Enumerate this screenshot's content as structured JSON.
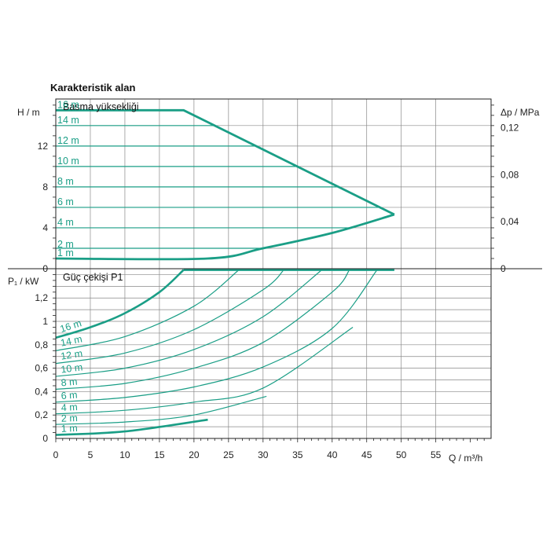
{
  "title": "Karakteristik alan",
  "colors": {
    "curve": "#1a9e86",
    "grid": "#888888",
    "axis": "#222222"
  },
  "chart_data": [
    {
      "type": "line",
      "id": "head",
      "title": "Basma yüksekliği",
      "ylabel": "H / m",
      "y2label": "Δp / MPa",
      "xlim": [
        0,
        63
      ],
      "ylim": [
        0,
        16.6
      ],
      "yticks": [
        "0",
        "4",
        "8",
        "12"
      ],
      "y2ticks": [
        "0",
        "0,04",
        "0,08",
        "0,12"
      ],
      "grid": true,
      "envelope": {
        "max": {
          "x": [
            0,
            18.5,
            49
          ],
          "y": [
            15.5,
            15.5,
            5.3
          ]
        },
        "min": {
          "x": [
            0,
            22,
            30,
            40,
            49
          ],
          "y": [
            1,
            1,
            2,
            3.5,
            5.3
          ]
        }
      },
      "series": [
        {
          "name": "16 m",
          "level": 15.5
        },
        {
          "name": "14 m",
          "level": 14
        },
        {
          "name": "12 m",
          "level": 12
        },
        {
          "name": "10 m",
          "level": 10
        },
        {
          "name": "8 m",
          "level": 8
        },
        {
          "name": "6 m",
          "level": 6
        },
        {
          "name": "4 m",
          "level": 4
        },
        {
          "name": "2 m",
          "level": 2
        },
        {
          "name": "1 m",
          "level": 1
        }
      ]
    },
    {
      "type": "line",
      "id": "power",
      "title": "Güç çekişi P1",
      "ylabel": "P₁ / kW",
      "xlabel": "Q / m³/h",
      "xlim": [
        0,
        63
      ],
      "ylim": [
        0,
        1.45
      ],
      "yticks": [
        "0",
        "0,2",
        "0,4",
        "0,6",
        "0,8",
        "1",
        "1,2"
      ],
      "xticks": [
        "0",
        "5",
        "10",
        "15",
        "20",
        "25",
        "30",
        "35",
        "40",
        "45",
        "50",
        "55"
      ],
      "grid": true,
      "max_power": {
        "x": [
          18.5,
          49
        ],
        "y": [
          1.44,
          1.44
        ]
      },
      "series": [
        {
          "name": "16 m",
          "x": [
            0,
            5,
            10,
            15,
            18.5
          ],
          "y": [
            0.86,
            0.95,
            1.07,
            1.25,
            1.44
          ]
        },
        {
          "name": "14 m",
          "x": [
            0,
            10,
            20,
            26.5
          ],
          "y": [
            0.75,
            0.87,
            1.13,
            1.44
          ]
        },
        {
          "name": "12 m",
          "x": [
            0,
            10,
            20,
            30,
            33
          ],
          "y": [
            0.64,
            0.73,
            0.93,
            1.27,
            1.44
          ]
        },
        {
          "name": "10 m",
          "x": [
            0,
            10,
            20,
            30,
            38.5
          ],
          "y": [
            0.53,
            0.6,
            0.76,
            1.04,
            1.44
          ]
        },
        {
          "name": "8 m",
          "x": [
            0,
            10,
            20,
            30,
            40,
            42.5
          ],
          "y": [
            0.42,
            0.47,
            0.6,
            0.82,
            1.25,
            1.44
          ]
        },
        {
          "name": "6 m",
          "x": [
            0,
            10,
            20,
            30,
            40,
            46.5
          ],
          "y": [
            0.31,
            0.35,
            0.44,
            0.61,
            0.94,
            1.44
          ]
        },
        {
          "name": "4 m",
          "x": [
            0,
            10,
            20,
            30,
            43
          ],
          "y": [
            0.21,
            0.24,
            0.31,
            0.43,
            0.95
          ]
        },
        {
          "name": "2 m",
          "x": [
            0,
            10,
            20,
            30.5
          ],
          "y": [
            0.12,
            0.14,
            0.2,
            0.36
          ]
        },
        {
          "name": "1 m",
          "x": [
            0,
            10,
            22
          ],
          "y": [
            0.03,
            0.06,
            0.16
          ]
        }
      ]
    }
  ]
}
